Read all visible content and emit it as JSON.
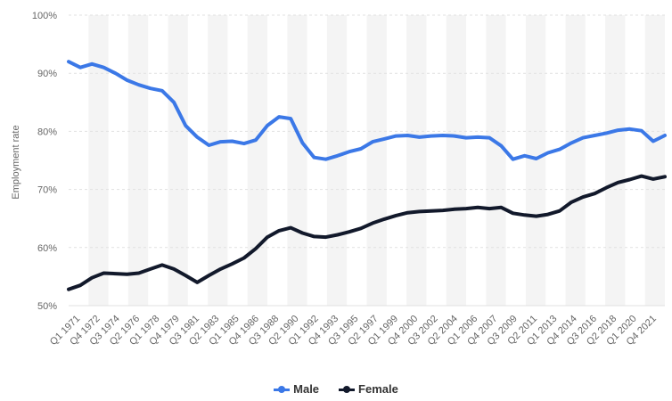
{
  "chart_data": {
    "type": "line",
    "ylabel": "Employment rate",
    "ylim": [
      50,
      100
    ],
    "yticks": [
      "50%",
      "60%",
      "70%",
      "80%",
      "90%",
      "100%"
    ],
    "ytick_values": [
      50,
      60,
      70,
      80,
      90,
      100
    ],
    "xtick_labels": [
      "Q1 1971",
      "Q4 1972",
      "Q3 1974",
      "Q2 1976",
      "Q1 1978",
      "Q4 1979",
      "Q3 1981",
      "Q2 1983",
      "Q1 1985",
      "Q4 1986",
      "Q3 1988",
      "Q2 1990",
      "Q1 1992",
      "Q4 1993",
      "Q3 1995",
      "Q2 1997",
      "Q1 1999",
      "Q4 2000",
      "Q3 2002",
      "Q2 2004",
      "Q1 2006",
      "Q4 2007",
      "Q3 2009",
      "Q2 2011",
      "Q1 2013",
      "Q4 2014",
      "Q3 2016",
      "Q2 2018",
      "Q1 2020",
      "Q4 2021"
    ],
    "x": [
      "Q1 1971",
      "Q1 1972",
      "Q1 1973",
      "Q1 1974",
      "Q1 1975",
      "Q1 1976",
      "Q1 1977",
      "Q1 1978",
      "Q1 1979",
      "Q1 1980",
      "Q1 1981",
      "Q1 1982",
      "Q1 1983",
      "Q1 1984",
      "Q1 1985",
      "Q1 1986",
      "Q1 1987",
      "Q1 1988",
      "Q1 1989",
      "Q1 1990",
      "Q1 1991",
      "Q1 1992",
      "Q1 1993",
      "Q1 1994",
      "Q1 1995",
      "Q1 1996",
      "Q1 1997",
      "Q1 1998",
      "Q1 1999",
      "Q1 2000",
      "Q1 2001",
      "Q1 2002",
      "Q1 2003",
      "Q1 2004",
      "Q1 2005",
      "Q1 2006",
      "Q1 2007",
      "Q1 2008",
      "Q1 2009",
      "Q1 2010",
      "Q1 2011",
      "Q1 2012",
      "Q1 2013",
      "Q1 2014",
      "Q1 2015",
      "Q1 2016",
      "Q1 2017",
      "Q1 2018",
      "Q1 2019",
      "Q1 2020",
      "Q1 2021",
      "Q1 2022"
    ],
    "series": [
      {
        "name": "Male",
        "color": "#3b78e7",
        "values": [
          92.0,
          91.0,
          91.6,
          91.0,
          90.0,
          88.8,
          88.0,
          87.4,
          87.0,
          85.0,
          81.0,
          79.0,
          77.6,
          78.2,
          78.3,
          77.9,
          78.5,
          81.0,
          82.5,
          82.2,
          78.0,
          75.5,
          75.2,
          75.8,
          76.5,
          77.0,
          78.2,
          78.7,
          79.2,
          79.3,
          79.0,
          79.2,
          79.3,
          79.2,
          78.9,
          79.0,
          78.9,
          77.5,
          75.2,
          75.8,
          75.3,
          76.3,
          76.9,
          78.0,
          78.9,
          79.3,
          79.7,
          80.2,
          80.4,
          80.1,
          78.3,
          79.3
        ]
      },
      {
        "name": "Female",
        "color": "#12192b",
        "values": [
          52.8,
          53.5,
          54.8,
          55.6,
          55.5,
          55.4,
          55.6,
          56.3,
          57.0,
          56.3,
          55.2,
          54.0,
          55.2,
          56.3,
          57.2,
          58.2,
          59.8,
          61.8,
          62.9,
          63.4,
          62.5,
          61.9,
          61.8,
          62.2,
          62.7,
          63.3,
          64.2,
          64.9,
          65.5,
          66.0,
          66.2,
          66.3,
          66.4,
          66.6,
          66.7,
          66.9,
          66.7,
          66.9,
          65.9,
          65.6,
          65.4,
          65.7,
          66.3,
          67.8,
          68.7,
          69.3,
          70.3,
          71.2,
          71.7,
          72.3,
          71.8,
          72.2
        ]
      }
    ],
    "legend": {
      "position": "bottom"
    },
    "grid": true
  }
}
